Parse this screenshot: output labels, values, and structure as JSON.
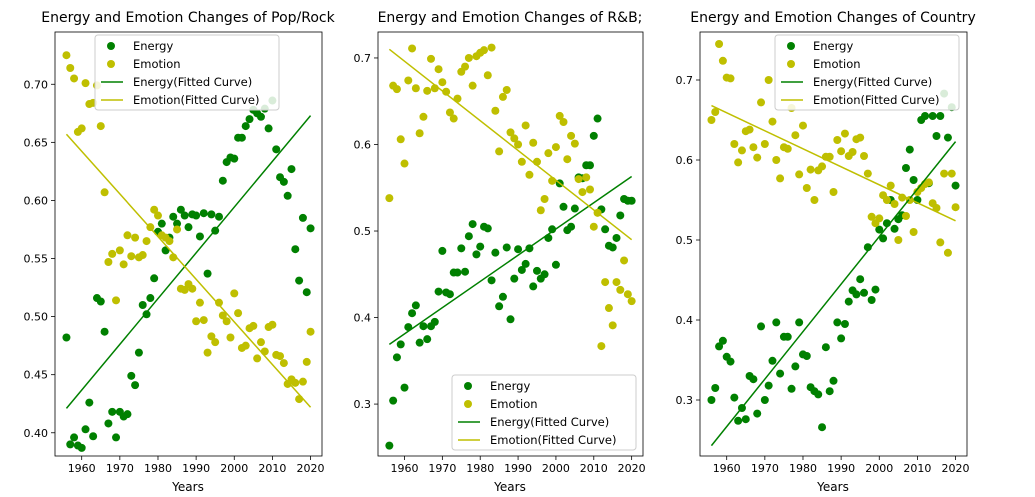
{
  "colors": {
    "energy": "#008000",
    "emotion": "#bfbf00"
  },
  "chart_data": [
    {
      "type": "scatter",
      "title": "Energy and Emotion Changes of Pop/Rock",
      "xlabel": "Years",
      "xlim": [
        1953,
        2023
      ],
      "ylim": [
        0.38,
        0.745
      ],
      "xticks": [
        1960,
        1970,
        1980,
        1990,
        2000,
        2010,
        2020
      ],
      "yticks": [
        0.4,
        0.45,
        0.5,
        0.55,
        0.6,
        0.65,
        0.7
      ],
      "legend_position": "top",
      "series": [
        {
          "name": "Energy",
          "kind": "scatter",
          "color_key": "energy",
          "x": [
            1956,
            1957,
            1958,
            1959,
            1960,
            1961,
            1962,
            1963,
            1964,
            1965,
            1966,
            1967,
            1968,
            1969,
            1970,
            1971,
            1972,
            1973,
            1974,
            1975,
            1976,
            1977,
            1978,
            1979,
            1980,
            1981,
            1982,
            1983,
            1984,
            1985,
            1986,
            1987,
            1988,
            1989,
            1990,
            1991,
            1992,
            1993,
            1994,
            1995,
            1996,
            1997,
            1998,
            1999,
            2000,
            2001,
            2002,
            2003,
            2004,
            2005,
            2006,
            2007,
            2008,
            2009,
            2010,
            2011,
            2012,
            2013,
            2014,
            2015,
            2016,
            2017,
            2018,
            2019,
            2020
          ],
          "y": [
            0.482,
            0.39,
            0.396,
            0.389,
            0.387,
            0.403,
            0.426,
            0.397,
            0.516,
            0.513,
            0.487,
            0.408,
            0.418,
            0.396,
            0.418,
            0.414,
            0.416,
            0.449,
            0.441,
            0.469,
            0.51,
            0.502,
            0.516,
            0.533,
            0.573,
            0.58,
            0.557,
            0.568,
            0.586,
            0.58,
            0.592,
            0.587,
            0.577,
            0.588,
            0.587,
            0.569,
            0.589,
            0.537,
            0.588,
            0.574,
            0.586,
            0.617,
            0.633,
            0.637,
            0.636,
            0.654,
            0.654,
            0.664,
            0.67,
            0.678,
            0.675,
            0.672,
            0.679,
            0.662,
            0.686,
            0.644,
            0.62,
            0.616,
            0.604,
            0.627,
            0.558,
            0.531,
            0.585,
            0.521,
            0.576
          ]
        },
        {
          "name": "Emotion",
          "kind": "scatter",
          "color_key": "emotion",
          "x": [
            1956,
            1957,
            1958,
            1959,
            1960,
            1961,
            1962,
            1963,
            1964,
            1965,
            1966,
            1967,
            1968,
            1969,
            1970,
            1971,
            1972,
            1973,
            1974,
            1975,
            1976,
            1977,
            1978,
            1979,
            1980,
            1981,
            1982,
            1983,
            1984,
            1985,
            1986,
            1987,
            1988,
            1989,
            1990,
            1991,
            1992,
            1993,
            1994,
            1995,
            1996,
            1997,
            1998,
            1999,
            2000,
            2001,
            2002,
            2003,
            2004,
            2005,
            2006,
            2007,
            2008,
            2009,
            2010,
            2011,
            2012,
            2013,
            2014,
            2015,
            2016,
            2017,
            2018,
            2019,
            2020
          ],
          "y": [
            0.725,
            0.714,
            0.705,
            0.659,
            0.662,
            0.701,
            0.683,
            0.684,
            0.699,
            0.664,
            0.607,
            0.547,
            0.554,
            0.514,
            0.557,
            0.545,
            0.57,
            0.552,
            0.568,
            0.551,
            0.553,
            0.565,
            0.577,
            0.592,
            0.587,
            0.57,
            0.568,
            0.565,
            0.551,
            0.575,
            0.524,
            0.523,
            0.528,
            0.524,
            0.496,
            0.512,
            0.497,
            0.469,
            0.483,
            0.478,
            0.512,
            0.501,
            0.496,
            0.482,
            0.52,
            0.503,
            0.473,
            0.475,
            0.49,
            0.492,
            0.464,
            0.478,
            0.47,
            0.491,
            0.493,
            0.467,
            0.466,
            0.46,
            0.442,
            0.446,
            0.443,
            0.429,
            0.444,
            0.461,
            0.487
          ]
        },
        {
          "name": "Energy(Fitted Curve)",
          "kind": "line",
          "color_key": "energy",
          "x": [
            1956,
            2020
          ],
          "y": [
            0.421,
            0.673
          ]
        },
        {
          "name": "Emotion(Fitted Curve)",
          "kind": "line",
          "color_key": "emotion",
          "x": [
            1956,
            2020
          ],
          "y": [
            0.657,
            0.422
          ]
        }
      ]
    },
    {
      "type": "scatter",
      "title": "Energy and Emotion Changes of R&B;",
      "xlabel": "Years",
      "xlim": [
        1953,
        2023
      ],
      "ylim": [
        0.24,
        0.73
      ],
      "xticks": [
        1960,
        1970,
        1980,
        1990,
        2000,
        2010,
        2020
      ],
      "yticks": [
        0.3,
        0.4,
        0.5,
        0.6,
        0.7
      ],
      "legend_position": "bottom-right",
      "series": [
        {
          "name": "Energy",
          "kind": "scatter",
          "color_key": "energy",
          "x": [
            1956,
            1957,
            1958,
            1959,
            1960,
            1961,
            1962,
            1963,
            1964,
            1965,
            1966,
            1967,
            1968,
            1969,
            1970,
            1971,
            1972,
            1973,
            1974,
            1975,
            1976,
            1977,
            1978,
            1979,
            1980,
            1981,
            1982,
            1983,
            1984,
            1985,
            1986,
            1987,
            1988,
            1989,
            1990,
            1991,
            1992,
            1993,
            1994,
            1995,
            1996,
            1997,
            1998,
            1999,
            2000,
            2001,
            2002,
            2003,
            2004,
            2005,
            2006,
            2007,
            2008,
            2009,
            2010,
            2011,
            2012,
            2013,
            2014,
            2015,
            2016,
            2017,
            2018,
            2019,
            2020
          ],
          "y": [
            0.252,
            0.304,
            0.354,
            0.369,
            0.319,
            0.389,
            0.405,
            0.414,
            0.371,
            0.39,
            0.375,
            0.39,
            0.395,
            0.43,
            0.477,
            0.429,
            0.427,
            0.452,
            0.452,
            0.48,
            0.453,
            0.494,
            0.508,
            0.473,
            0.482,
            0.505,
            0.503,
            0.443,
            0.475,
            0.413,
            0.424,
            0.481,
            0.398,
            0.445,
            0.479,
            0.455,
            0.462,
            0.48,
            0.436,
            0.454,
            0.445,
            0.45,
            0.492,
            0.502,
            0.461,
            0.555,
            0.528,
            0.501,
            0.505,
            0.526,
            0.562,
            0.561,
            0.576,
            0.576,
            0.61,
            0.63,
            0.525,
            0.502,
            0.483,
            0.481,
            0.492,
            0.518,
            0.537,
            0.535,
            0.535
          ]
        },
        {
          "name": "Emotion",
          "kind": "scatter",
          "color_key": "emotion",
          "x": [
            1956,
            1957,
            1958,
            1959,
            1960,
            1961,
            1962,
            1963,
            1964,
            1965,
            1966,
            1967,
            1968,
            1969,
            1970,
            1971,
            1972,
            1973,
            1974,
            1975,
            1976,
            1977,
            1978,
            1979,
            1980,
            1981,
            1982,
            1983,
            1984,
            1985,
            1986,
            1987,
            1988,
            1989,
            1990,
            1991,
            1992,
            1993,
            1994,
            1995,
            1996,
            1997,
            1998,
            1999,
            2000,
            2001,
            2002,
            2003,
            2004,
            2005,
            2006,
            2007,
            2008,
            2009,
            2010,
            2011,
            2012,
            2013,
            2014,
            2015,
            2016,
            2017,
            2018,
            2019,
            2020
          ],
          "y": [
            0.538,
            0.668,
            0.664,
            0.606,
            0.578,
            0.674,
            0.711,
            0.665,
            0.613,
            0.632,
            0.662,
            0.699,
            0.665,
            0.687,
            0.672,
            0.661,
            0.637,
            0.63,
            0.653,
            0.684,
            0.69,
            0.7,
            0.668,
            0.702,
            0.706,
            0.709,
            0.68,
            0.712,
            0.639,
            0.592,
            0.655,
            0.663,
            0.614,
            0.607,
            0.6,
            0.58,
            0.622,
            0.565,
            0.602,
            0.58,
            0.524,
            0.537,
            0.59,
            0.558,
            0.597,
            0.633,
            0.626,
            0.583,
            0.61,
            0.601,
            0.56,
            0.545,
            0.562,
            0.548,
            0.505,
            0.521,
            0.367,
            0.441,
            0.411,
            0.391,
            0.441,
            0.432,
            0.466,
            0.427,
            0.419
          ]
        },
        {
          "name": "Energy(Fitted Curve)",
          "kind": "line",
          "color_key": "energy",
          "x": [
            1956,
            2020
          ],
          "y": [
            0.369,
            0.563
          ]
        },
        {
          "name": "Emotion(Fitted Curve)",
          "kind": "line",
          "color_key": "emotion",
          "x": [
            1956,
            2020
          ],
          "y": [
            0.71,
            0.49
          ]
        }
      ]
    },
    {
      "type": "scatter",
      "title": "Energy and Emotion Changes of Country",
      "xlabel": "Years",
      "xlim": [
        1953,
        2023
      ],
      "ylim": [
        0.23,
        0.76
      ],
      "xticks": [
        1960,
        1970,
        1980,
        1990,
        2000,
        2010,
        2020
      ],
      "yticks": [
        0.3,
        0.4,
        0.5,
        0.6,
        0.7
      ],
      "legend_position": "top-right",
      "series": [
        {
          "name": "Energy",
          "kind": "scatter",
          "color_key": "energy",
          "x": [
            1956,
            1957,
            1958,
            1959,
            1960,
            1961,
            1962,
            1963,
            1964,
            1965,
            1966,
            1967,
            1968,
            1969,
            1970,
            1971,
            1972,
            1973,
            1974,
            1975,
            1976,
            1977,
            1978,
            1979,
            1980,
            1981,
            1982,
            1983,
            1984,
            1985,
            1986,
            1987,
            1988,
            1989,
            1990,
            1991,
            1992,
            1993,
            1994,
            1995,
            1996,
            1997,
            1998,
            1999,
            2000,
            2001,
            2002,
            2003,
            2004,
            2005,
            2006,
            2007,
            2008,
            2009,
            2010,
            2011,
            2012,
            2013,
            2014,
            2015,
            2016,
            2017,
            2018,
            2019,
            2020
          ],
          "y": [
            0.3,
            0.315,
            0.367,
            0.374,
            0.354,
            0.348,
            0.303,
            0.274,
            0.29,
            0.276,
            0.33,
            0.326,
            0.283,
            0.392,
            0.3,
            0.318,
            0.349,
            0.397,
            0.333,
            0.379,
            0.379,
            0.314,
            0.342,
            0.397,
            0.357,
            0.355,
            0.316,
            0.311,
            0.307,
            0.266,
            0.366,
            0.311,
            0.324,
            0.397,
            0.377,
            0.395,
            0.423,
            0.437,
            0.432,
            0.451,
            0.434,
            0.491,
            0.425,
            0.438,
            0.513,
            0.502,
            0.521,
            0.55,
            0.514,
            0.526,
            0.531,
            0.59,
            0.613,
            0.575,
            0.55,
            0.65,
            0.655,
            0.571,
            0.655,
            0.63,
            0.655,
            0.683,
            0.628,
            0.666,
            0.568
          ]
        },
        {
          "name": "Emotion",
          "kind": "scatter",
          "color_key": "emotion",
          "x": [
            1956,
            1957,
            1958,
            1959,
            1960,
            1961,
            1962,
            1963,
            1964,
            1965,
            1966,
            1967,
            1968,
            1969,
            1970,
            1971,
            1972,
            1973,
            1974,
            1975,
            1976,
            1977,
            1978,
            1979,
            1980,
            1981,
            1982,
            1983,
            1984,
            1985,
            1986,
            1987,
            1988,
            1989,
            1990,
            1991,
            1992,
            1993,
            1994,
            1995,
            1996,
            1997,
            1998,
            1999,
            2000,
            2001,
            2002,
            2003,
            2004,
            2005,
            2006,
            2007,
            2008,
            2009,
            2010,
            2011,
            2012,
            2013,
            2014,
            2015,
            2016,
            2017,
            2018,
            2019,
            2020
          ],
          "y": [
            0.65,
            0.66,
            0.745,
            0.724,
            0.703,
            0.702,
            0.62,
            0.597,
            0.612,
            0.636,
            0.638,
            0.616,
            0.603,
            0.672,
            0.62,
            0.7,
            0.648,
            0.6,
            0.577,
            0.616,
            0.614,
            0.665,
            0.631,
            0.582,
            0.643,
            0.565,
            0.588,
            0.55,
            0.587,
            0.592,
            0.604,
            0.604,
            0.56,
            0.625,
            0.611,
            0.633,
            0.605,
            0.61,
            0.626,
            0.628,
            0.605,
            0.583,
            0.529,
            0.521,
            0.527,
            0.556,
            0.55,
            0.568,
            0.545,
            0.5,
            0.553,
            0.53,
            0.55,
            0.51,
            0.56,
            0.565,
            0.57,
            0.572,
            0.546,
            0.54,
            0.497,
            0.583,
            0.484,
            0.583,
            0.541
          ]
        },
        {
          "name": "Energy(Fitted Curve)",
          "kind": "line",
          "color_key": "energy",
          "x": [
            1956,
            2020
          ],
          "y": [
            0.243,
            0.623
          ]
        },
        {
          "name": "Emotion(Fitted Curve)",
          "kind": "line",
          "color_key": "emotion",
          "x": [
            1956,
            2020
          ],
          "y": [
            0.668,
            0.524
          ]
        }
      ]
    }
  ]
}
